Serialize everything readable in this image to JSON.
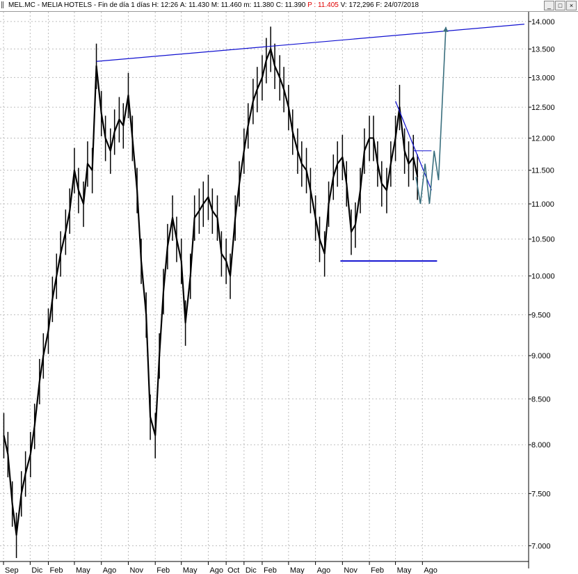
{
  "header": {
    "ticker": "MEL.MC",
    "name": "MELIA HOTELS",
    "period": "Fin de día 1 días",
    "high_label": "H:",
    "high_value": "12:26",
    "a_label": "A:",
    "a_value": "11.430",
    "max_label": "M:",
    "max_value": "11.460",
    "min_label": "m:",
    "min_value": "11.380",
    "close_label": "C:",
    "close_value": "11.390",
    "p_label": "P :",
    "p_value": "11.405",
    "volume_label": "V:",
    "volume_value": "172,296",
    "date_label": "F:",
    "date_value": "24/07/2018",
    "minimize_symbol": "_",
    "maximize_symbol": "□",
    "close_symbol": "×"
  },
  "chart_data": {
    "type": "line",
    "title": "MEL.MC - MELIA HOTELS",
    "y_scale": "log",
    "ylim": [
      6.9,
      14.05
    ],
    "y_ticks": [
      "14.000",
      "13.500",
      "13.000",
      "12.500",
      "12.000",
      "11.500",
      "11.000",
      "10.500",
      "10.000",
      "9.500",
      "9.000",
      "8.500",
      "8.000",
      "7.500",
      "7.000"
    ],
    "x_ticks": [
      "Sep",
      "Dic",
      "Feb",
      "May",
      "Ago",
      "Nov",
      "Feb",
      "May",
      "Ago",
      "Oct",
      "Dic",
      "Feb",
      "May",
      "Ago",
      "Nov",
      "Feb",
      "May",
      "Ago"
    ],
    "x_tick_dates": [
      "2013-09-01",
      "2013-12-01",
      "2014-02-01",
      "2014-05-01",
      "2014-08-01",
      "2014-11-01",
      "2015-02-01",
      "2015-05-01",
      "2015-08-01",
      "2015-10-01",
      "2015-12-01",
      "2016-02-01",
      "2016-05-01",
      "2016-08-01",
      "2016-11-01",
      "2017-02-01",
      "2017-05-01",
      "2017-08-01"
    ],
    "grid": true,
    "series": [
      {
        "values_x": [
          "2013-09-02",
          "2013-09-16",
          "2013-10-01",
          "2013-10-15",
          "2013-11-01",
          "2013-11-15",
          "2013-12-02",
          "2013-12-16",
          "2014-01-02",
          "2014-01-15",
          "2014-02-01",
          "2014-02-15",
          "2014-03-01",
          "2014-03-15",
          "2014-04-01",
          "2014-04-15",
          "2014-05-01",
          "2014-05-15",
          "2014-06-01",
          "2014-06-15",
          "2014-07-01",
          "2014-07-15",
          "2014-08-01",
          "2014-08-15",
          "2014-09-01",
          "2014-09-15",
          "2014-10-01",
          "2014-10-15",
          "2014-11-01",
          "2014-11-15",
          "2014-12-01",
          "2014-12-15",
          "2015-01-01",
          "2015-01-15",
          "2015-02-01",
          "2015-02-15",
          "2015-03-01",
          "2015-03-15",
          "2015-04-01",
          "2015-04-15",
          "2015-05-01",
          "2015-05-15",
          "2015-06-01",
          "2015-06-15",
          "2015-07-01",
          "2015-07-15",
          "2015-08-01",
          "2015-08-15",
          "2015-09-01",
          "2015-09-15",
          "2015-10-01",
          "2015-10-15",
          "2015-11-01",
          "2015-11-15",
          "2015-12-01",
          "2015-12-15",
          "2016-01-01",
          "2016-01-15",
          "2016-02-01",
          "2016-02-15",
          "2016-03-01",
          "2016-03-15",
          "2016-04-01",
          "2016-04-15",
          "2016-05-01",
          "2016-05-15",
          "2016-06-01",
          "2016-06-15",
          "2016-07-01",
          "2016-07-15",
          "2016-08-01",
          "2016-08-15",
          "2016-09-01",
          "2016-09-15",
          "2016-10-01",
          "2016-10-15",
          "2016-11-01",
          "2016-11-15",
          "2016-12-01",
          "2016-12-15",
          "2017-01-01",
          "2017-01-15",
          "2017-02-01",
          "2017-02-15",
          "2017-03-01",
          "2017-03-15",
          "2017-04-01",
          "2017-04-15",
          "2017-05-01",
          "2017-05-15",
          "2017-06-01",
          "2017-06-15",
          "2017-07-01",
          "2017-07-15"
        ],
        "values_y": [
          8.1,
          7.9,
          7.4,
          7.1,
          7.5,
          7.7,
          7.9,
          8.2,
          8.7,
          9.0,
          9.3,
          9.7,
          10.0,
          10.3,
          10.6,
          10.9,
          11.5,
          11.2,
          11.0,
          11.6,
          11.5,
          13.2,
          12.4,
          12.0,
          11.8,
          12.1,
          12.3,
          12.2,
          12.7,
          12.0,
          11.2,
          10.2,
          9.5,
          8.3,
          8.1,
          9.0,
          9.8,
          10.4,
          10.8,
          10.5,
          10.2,
          9.4,
          10.0,
          10.8,
          10.9,
          11.0,
          11.1,
          10.9,
          10.8,
          10.3,
          10.2,
          10.0,
          10.8,
          11.3,
          11.8,
          12.2,
          12.6,
          12.8,
          13.0,
          13.3,
          13.5,
          13.2,
          13.0,
          12.8,
          12.5,
          12.1,
          11.8,
          11.6,
          11.5,
          11.2,
          10.8,
          10.5,
          10.3,
          11.0,
          11.4,
          11.6,
          11.7,
          11.3,
          10.6,
          10.7,
          11.2,
          11.8,
          12.0,
          12.0,
          11.6,
          11.3,
          11.2,
          11.6,
          12.0,
          12.5,
          11.8,
          11.6,
          11.7,
          11.4
        ]
      }
    ],
    "annotations": {
      "resistance_line": {
        "from": [
          "2014-07-15",
          13.28
        ],
        "to": [
          "2018-07-15",
          13.95
        ]
      },
      "support_line": {
        "from": [
          "2016-10-25",
          10.2
        ],
        "to": [
          "2017-09-20",
          10.2
        ]
      },
      "descending_line": {
        "from": [
          "2017-05-01",
          12.6
        ],
        "to": [
          "2017-09-01",
          11.2
        ]
      },
      "breakout_level": {
        "from": [
          "2017-07-01",
          11.8
        ],
        "to": [
          "2017-09-01",
          11.8
        ]
      },
      "projection_path": [
        [
          "2017-07-10",
          11.4
        ],
        [
          "2017-07-25",
          11.0
        ],
        [
          "2017-08-10",
          11.6
        ],
        [
          "2017-08-25",
          11.0
        ],
        [
          "2017-09-10",
          11.8
        ],
        [
          "2017-09-25",
          11.35
        ],
        [
          "2017-10-20",
          13.9
        ]
      ]
    }
  },
  "colors": {
    "price": "#000000",
    "trend_line": "#1010d0",
    "support_line": "#1010d0",
    "projection": "#3a6f7e",
    "grid": "#bdbdbd",
    "axis_text": "#000000"
  }
}
